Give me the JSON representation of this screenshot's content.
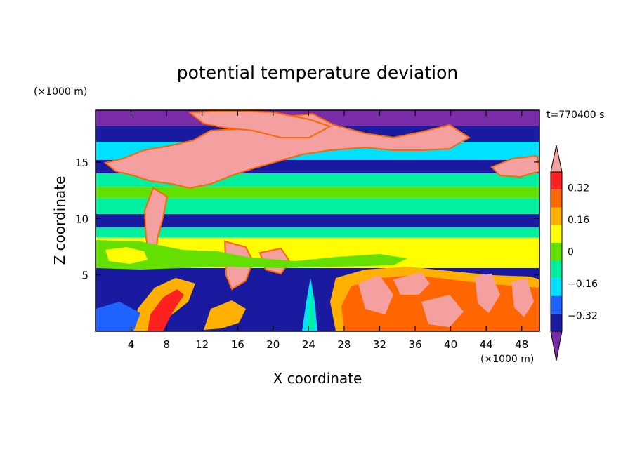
{
  "chart_data": {
    "type": "heatmap",
    "title": "potential temperature deviation",
    "xlabel": "X coordinate",
    "ylabel": "Z coordinate",
    "x_unit": "(×1000 m)",
    "y_unit": "(×1000 m)",
    "time_label": "t=770400 s",
    "xlim": [
      0,
      50
    ],
    "ylim": [
      0,
      19.6
    ],
    "x_ticks": [
      4,
      8,
      12,
      16,
      20,
      24,
      28,
      32,
      36,
      40,
      44,
      48
    ],
    "y_ticks": [
      5,
      10,
      15
    ],
    "colorbar": {
      "levels": [
        -0.4,
        -0.32,
        -0.24,
        -0.16,
        -0.08,
        0,
        0.08,
        0.16,
        0.24,
        0.32,
        0.4
      ],
      "tick_labels": [
        "-0.32",
        "-0.16",
        "0",
        "0.16",
        "0.32"
      ],
      "tick_values": [
        -0.32,
        -0.16,
        0,
        0.16,
        0.32
      ],
      "colors": [
        "#7b2ca8",
        "#1a1aa0",
        "#1e63ff",
        "#00e0ff",
        "#00f0a0",
        "#64e000",
        "#ffff00",
        "#ffb000",
        "#ff6600",
        "#ff2020",
        "#f5a0a0"
      ],
      "extend": "both"
    },
    "bands": [
      {
        "z": [
          0,
          4.2
        ],
        "value": -0.36
      },
      {
        "z": [
          4.2,
          5.6
        ],
        "value": -0.4
      },
      {
        "z": [
          5.6,
          6.6
        ],
        "value": 0.02
      },
      {
        "z": [
          6.6,
          8.3
        ],
        "value": 0.06
      },
      {
        "z": [
          8.3,
          9.2
        ],
        "value": -0.14
      },
      {
        "z": [
          9.2,
          10.4
        ],
        "value": -0.36
      },
      {
        "z": [
          10.4,
          11.8
        ],
        "value": -0.12
      },
      {
        "z": [
          11.8,
          12.8
        ],
        "value": -0.06
      },
      {
        "z": [
          12.8,
          14.0
        ],
        "value": -0.12
      },
      {
        "z": [
          14.0,
          15.2
        ],
        "value": -0.36
      },
      {
        "z": [
          15.2,
          16.8
        ],
        "value": -0.24
      },
      {
        "z": [
          16.8,
          18.2
        ],
        "value": -0.4
      },
      {
        "z": [
          18.2,
          19.6
        ],
        "value": -0.42
      }
    ]
  }
}
